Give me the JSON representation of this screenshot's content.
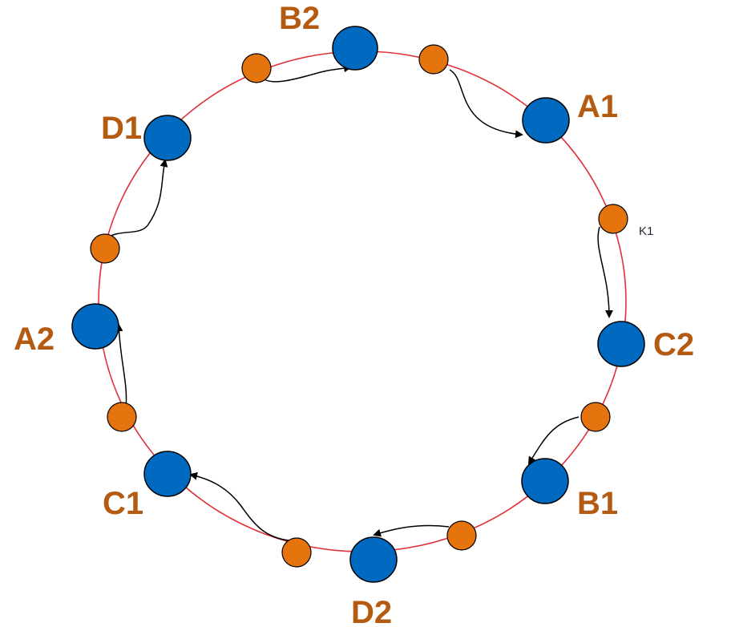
{
  "colors": {
    "ring": "#e0313a",
    "node_fill": "#0069c0",
    "node_stroke": "#000000",
    "key_fill": "#e5740f",
    "key_stroke": "#000000",
    "label": "#b55a11",
    "arrow": "#000000",
    "key_label": "#1f2a36"
  },
  "nodes": [
    {
      "id": "B2",
      "label": "B2"
    },
    {
      "id": "A1",
      "label": "A1"
    },
    {
      "id": "C2",
      "label": "C2"
    },
    {
      "id": "B1",
      "label": "B1"
    },
    {
      "id": "D2",
      "label": "D2"
    },
    {
      "id": "C1",
      "label": "C1"
    },
    {
      "id": "A2",
      "label": "A2"
    },
    {
      "id": "D1",
      "label": "D1"
    }
  ],
  "keys": [
    {
      "id": "key-1",
      "label": "",
      "target": "A1"
    },
    {
      "id": "key-2",
      "label": "K1",
      "target": "C2"
    },
    {
      "id": "key-3",
      "label": "",
      "target": "B1"
    },
    {
      "id": "key-4",
      "label": "",
      "target": "D2"
    },
    {
      "id": "key-5",
      "label": "",
      "target": "C1"
    },
    {
      "id": "key-6",
      "label": "",
      "target": "A2"
    },
    {
      "id": "key-7",
      "label": "",
      "target": "D1"
    },
    {
      "id": "key-8",
      "label": "",
      "target": "B2"
    }
  ]
}
